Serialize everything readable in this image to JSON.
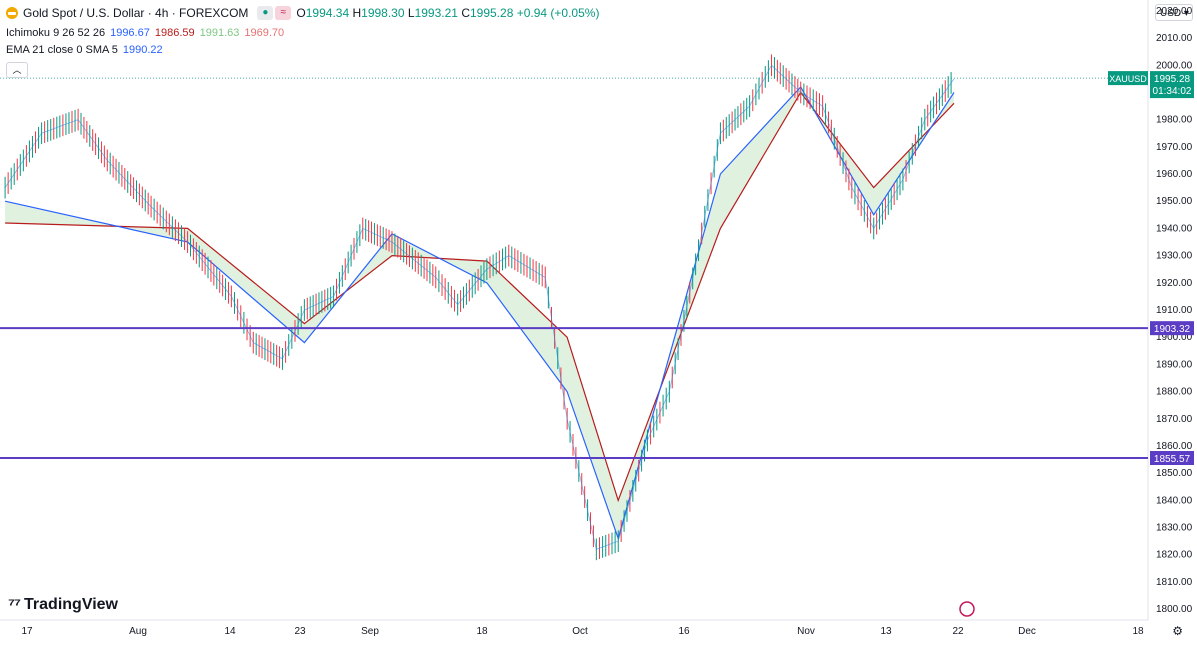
{
  "header": {
    "symbol": "Gold Spot / U.S. Dollar · 4h · FOREXCOM",
    "ohlc": {
      "o_label": "O",
      "o": "1994.34",
      "h_label": "H",
      "h": "1998.30",
      "l_label": "L",
      "l": "1993.21",
      "c_label": "C",
      "c": "1995.28",
      "change": "+0.94 (+0.05%)"
    },
    "ichimoku": {
      "label": "Ichimoku 9 26 52 26",
      "v1": "1996.67",
      "v2": "1986.59",
      "v3": "1991.63",
      "v4": "1969.70"
    },
    "ema": {
      "label": "EMA 21 close 0 SMA 5",
      "v1": "1990.22"
    },
    "currency": "USD"
  },
  "branding": {
    "name": "TradingView"
  },
  "colors": {
    "up": "#089981",
    "down": "#f23645",
    "conv": "#2962ff",
    "base": "#b71c1c",
    "spanA": "#a5d6a7",
    "spanB": "#ef9a9a",
    "hline": "#5b3cc4",
    "price_tag": "#089981"
  },
  "chart_data": {
    "type": "line",
    "title": "Gold Spot / U.S. Dollar · 4h · FOREXCOM",
    "y_ticks": [
      1800,
      1810,
      1820,
      1830,
      1840,
      1850,
      1860,
      1870,
      1880,
      1890,
      1900,
      1910,
      1920,
      1930,
      1940,
      1950,
      1960,
      1970,
      1980,
      1990,
      2000,
      2010,
      2020
    ],
    "ylim": [
      1796,
      2024
    ],
    "x_ticks": [
      "17",
      "Aug",
      "14",
      "23",
      "Sep",
      "18",
      "Oct",
      "16",
      "Nov",
      "13",
      "22",
      "Dec",
      "18"
    ],
    "series": [
      {
        "name": "XAUUSD",
        "x": [
          "Jul 14",
          "Jul 19",
          "Jul 24",
          "Jul 28",
          "Aug 3",
          "Aug 8",
          "Aug 14",
          "Aug 17",
          "Aug 21",
          "Aug 24",
          "Aug 28",
          "Sep 1",
          "Sep 5",
          "Sep 11",
          "Sep 14",
          "Sep 18",
          "Sep 21",
          "Sep 26",
          "Sep 29",
          "Oct 3",
          "Oct 6",
          "Oct 10",
          "Oct 13",
          "Oct 17",
          "Oct 20",
          "Oct 24",
          "Oct 27",
          "Oct 31",
          "Nov 3",
          "Nov 7",
          "Nov 10",
          "Nov 14",
          "Nov 17",
          "Nov 21"
        ],
        "y": [
          1955,
          1975,
          1980,
          1965,
          1948,
          1935,
          1915,
          1898,
          1892,
          1910,
          1915,
          1940,
          1935,
          1922,
          1912,
          1925,
          1930,
          1922,
          1870,
          1822,
          1825,
          1862,
          1880,
          1932,
          1975,
          1985,
          2000,
          1990,
          1985,
          1955,
          1940,
          1958,
          1980,
          1995
        ]
      },
      {
        "name": "Ichimoku conversion",
        "x": [
          "Jul 14",
          "Aug 8",
          "Aug 24",
          "Sep 5",
          "Sep 18",
          "Sep 29",
          "Oct 6",
          "Oct 20",
          "Oct 31",
          "Nov 10",
          "Nov 21"
        ],
        "y": [
          1950,
          1935,
          1898,
          1938,
          1920,
          1880,
          1826,
          1960,
          1992,
          1945,
          1990
        ]
      },
      {
        "name": "Ichimoku base",
        "x": [
          "Jul 14",
          "Aug 8",
          "Aug 24",
          "Sep 5",
          "Sep 18",
          "Sep 29",
          "Oct 6",
          "Oct 20",
          "Oct 31",
          "Nov 10",
          "Nov 21"
        ],
        "y": [
          1942,
          1940,
          1905,
          1930,
          1928,
          1900,
          1840,
          1940,
          1990,
          1955,
          1986
        ]
      }
    ],
    "hlines": [
      {
        "label": "1903.32",
        "value": 1903.32
      },
      {
        "label": "1855.57",
        "value": 1855.57
      }
    ],
    "last_price": {
      "symbol": "XAUUSD",
      "value": "1995.28",
      "countdown": "01:34:02",
      "y": 1995.28
    },
    "grid": false
  }
}
